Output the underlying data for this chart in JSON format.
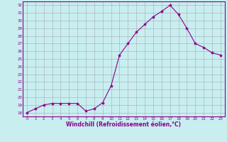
{
  "x": [
    0,
    1,
    2,
    3,
    4,
    5,
    6,
    7,
    8,
    9,
    10,
    11,
    12,
    13,
    14,
    15,
    16,
    17,
    18,
    19,
    20,
    21,
    22,
    23
  ],
  "y": [
    18.0,
    18.5,
    19.0,
    19.2,
    19.2,
    19.2,
    19.2,
    18.2,
    18.5,
    19.3,
    21.5,
    25.5,
    27.0,
    28.5,
    29.5,
    30.5,
    31.2,
    32.0,
    30.8,
    29.0,
    27.0,
    26.5,
    25.8,
    25.5
  ],
  "line_color": "#8B008B",
  "marker": "*",
  "marker_size": 3,
  "bg_color": "#c8eef0",
  "grid_color": "#aaaaaa",
  "xlabel": "Windchill (Refroidissement éolien,°C)",
  "ylim": [
    17.5,
    32.5
  ],
  "xlim": [
    -0.5,
    23.5
  ],
  "yticks": [
    18,
    19,
    20,
    21,
    22,
    23,
    24,
    25,
    26,
    27,
    28,
    29,
    30,
    31,
    32
  ],
  "xticks": [
    0,
    1,
    2,
    3,
    4,
    5,
    6,
    7,
    8,
    9,
    10,
    11,
    12,
    13,
    14,
    15,
    16,
    17,
    18,
    19,
    20,
    21,
    22,
    23
  ],
  "tick_color": "#8B008B",
  "label_color": "#8B008B",
  "spine_color": "#8B008B"
}
